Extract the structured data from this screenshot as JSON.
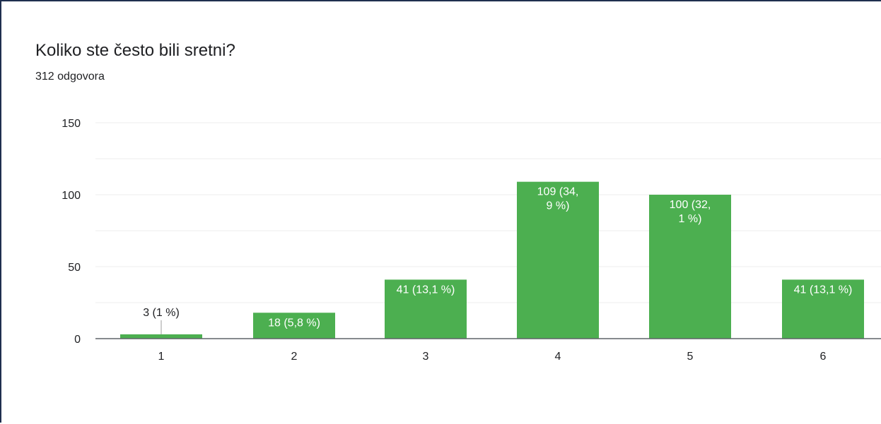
{
  "header": {
    "title": "Koliko ste često bili sretni?",
    "subtitle": "312 odgovora"
  },
  "colors": {
    "bar": "#4caf50",
    "grid": "#ececec",
    "axis": "#5f6368",
    "label_inside": "#ffffff",
    "label_outside": "#202124"
  },
  "chart_data": {
    "type": "bar",
    "categories": [
      "1",
      "2",
      "3",
      "4",
      "5",
      "6"
    ],
    "values": [
      3,
      18,
      41,
      109,
      100,
      41
    ],
    "data_labels": [
      [
        "3 (1 %)"
      ],
      [
        "18 (5,8 %)"
      ],
      [
        "41 (13,1 %)"
      ],
      [
        "109 (34,",
        "9 %)"
      ],
      [
        "100 (32,",
        "1 %)"
      ],
      [
        "41 (13,1 %)"
      ]
    ],
    "title": "Koliko ste često bili sretni?",
    "xlabel": "",
    "ylabel": "",
    "ylim": [
      0,
      150
    ],
    "yticks": [
      0,
      50,
      100,
      150
    ],
    "grid": true,
    "legend": "none"
  }
}
